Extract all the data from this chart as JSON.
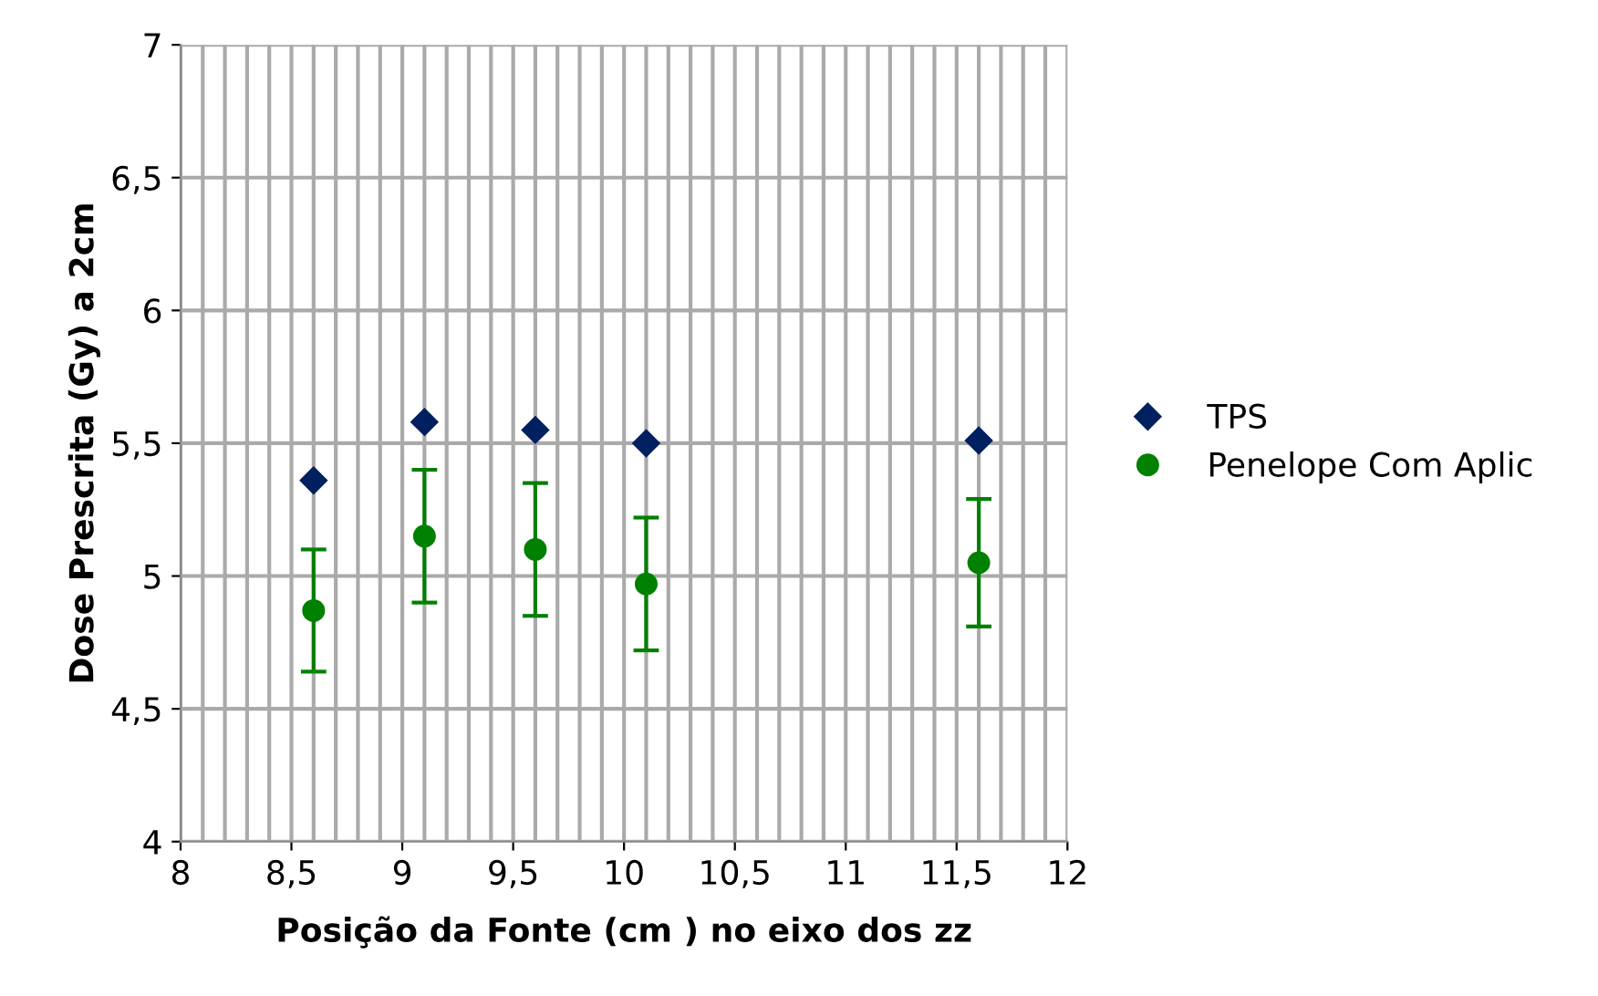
{
  "chart_data": {
    "type": "scatter",
    "xlabel": "Posição da Fonte (cm ) no eixo dos zz",
    "ylabel": "Dose Prescrita (Gy) a 2cm",
    "x": [
      8.6,
      9.1,
      9.6,
      10.1,
      11.6
    ],
    "series": [
      {
        "name": "TPS",
        "color": "#002060",
        "marker": "diamond",
        "values": [
          5.36,
          5.58,
          5.55,
          5.5,
          5.51
        ]
      },
      {
        "name": "Penelope Com Aplic",
        "color": "#008000",
        "marker": "circle",
        "values": [
          4.87,
          5.15,
          5.1,
          4.97,
          5.05
        ],
        "errors": [
          [
            4.64,
            5.1
          ],
          [
            4.9,
            5.4
          ],
          [
            4.85,
            5.35
          ],
          [
            4.72,
            5.22
          ],
          [
            4.81,
            5.29
          ]
        ]
      }
    ],
    "xlim": [
      8,
      12
    ],
    "ylim": [
      4,
      7
    ],
    "xticks": [
      8,
      {
        "value": 8.1,
        "label": null
      },
      {
        "value": 8.2,
        "label": null
      },
      {
        "value": 8.3,
        "label": null
      },
      {
        "value": 8.4,
        "label": null
      },
      {
        "value": 8.5,
        "label": "8,5"
      },
      {
        "value": 8.6,
        "label": null
      },
      {
        "value": 8.7,
        "label": null
      },
      {
        "value": 8.8,
        "label": null
      },
      {
        "value": 8.9,
        "label": null
      },
      9,
      {
        "value": 9.1,
        "label": null
      },
      {
        "value": 9.2,
        "label": null
      },
      {
        "value": 9.3,
        "label": null
      },
      {
        "value": 9.4,
        "label": null
      },
      {
        "value": 9.5,
        "label": "9,5"
      },
      {
        "value": 9.6,
        "label": null
      },
      {
        "value": 9.7,
        "label": null
      },
      {
        "value": 9.8,
        "label": null
      },
      {
        "value": 9.9,
        "label": null
      },
      10,
      {
        "value": 10.1,
        "label": null
      },
      {
        "value": 10.2,
        "label": null
      },
      {
        "value": 10.3,
        "label": null
      },
      {
        "value": 10.4,
        "label": null
      },
      {
        "value": 10.5,
        "label": "10,5"
      },
      {
        "value": 10.6,
        "label": null
      },
      {
        "value": 10.7,
        "label": null
      },
      {
        "value": 10.8,
        "label": null
      },
      {
        "value": 10.9,
        "label": null
      },
      11,
      {
        "value": 11.1,
        "label": null
      },
      {
        "value": 11.2,
        "label": null
      },
      {
        "value": 11.3,
        "label": null
      },
      {
        "value": 11.4,
        "label": null
      },
      {
        "value": 11.5,
        "label": "11,5"
      },
      {
        "value": 11.6,
        "label": null
      },
      {
        "value": 11.7,
        "label": null
      },
      {
        "value": 11.8,
        "label": null
      },
      {
        "value": 11.9,
        "label": null
      },
      12
    ],
    "yticks": [
      4,
      {
        "value": 4.5,
        "label": "4,5"
      },
      5,
      {
        "value": 5.5,
        "label": "5,5"
      },
      6,
      {
        "value": 6.5,
        "label": "6,5"
      },
      7
    ],
    "grid": true,
    "legend": "right"
  }
}
